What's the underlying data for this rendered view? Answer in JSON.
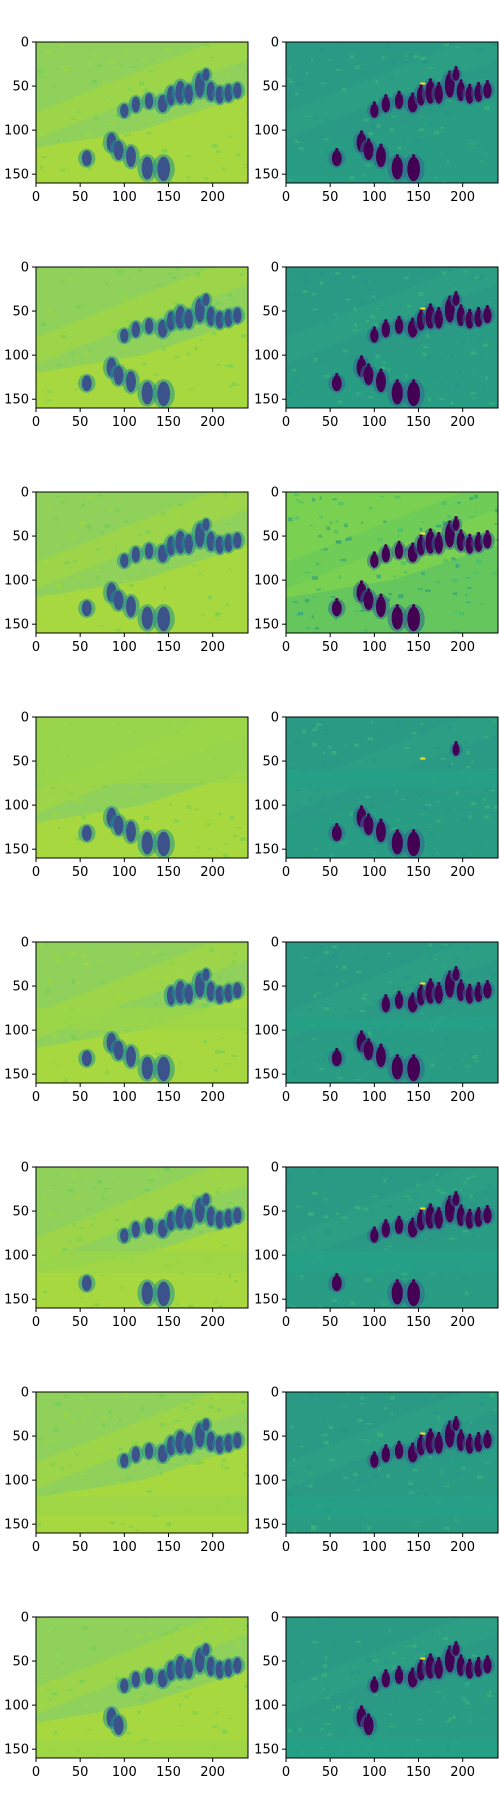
{
  "figure": {
    "rows": 8,
    "columns": 2,
    "colormap": "viridis",
    "axis_spine_color": "#000000",
    "background": "#ffffff"
  },
  "chart_data": [
    {
      "type": "heatmap",
      "panel": "row-1-left",
      "xticks": [
        0,
        50,
        100,
        150,
        200
      ],
      "yticks": [
        0,
        50,
        100,
        150
      ],
      "xlim": [
        0,
        240
      ],
      "ylim": [
        160,
        0
      ],
      "grid": false,
      "dominant_color": "#8fd15a",
      "masked_region": null
    },
    {
      "type": "heatmap",
      "panel": "row-1-right",
      "xticks": [
        0,
        50,
        100,
        150,
        200
      ],
      "yticks": [
        0,
        50,
        100,
        150
      ],
      "xlim": [
        0,
        240
      ],
      "ylim": [
        160,
        0
      ],
      "grid": false,
      "dominant_color": "#2a9a85",
      "masked_region": null
    },
    {
      "type": "heatmap",
      "panel": "row-2-left",
      "xticks": [
        0,
        50,
        100,
        150,
        200
      ],
      "yticks": [
        0,
        50,
        100,
        150
      ],
      "xlim": [
        0,
        240
      ],
      "ylim": [
        160,
        0
      ],
      "grid": false,
      "dominant_color": "#8fd15a",
      "masked_region": null
    },
    {
      "type": "heatmap",
      "panel": "row-2-right",
      "xticks": [
        0,
        50,
        100,
        150,
        200
      ],
      "yticks": [
        0,
        50,
        100,
        150
      ],
      "xlim": [
        0,
        240
      ],
      "ylim": [
        160,
        0
      ],
      "grid": false,
      "dominant_color": "#2a9a85",
      "masked_region": null
    },
    {
      "type": "heatmap",
      "panel": "row-3-left",
      "xticks": [
        0,
        50,
        100,
        150,
        200
      ],
      "yticks": [
        0,
        50,
        100,
        150
      ],
      "xlim": [
        0,
        240
      ],
      "ylim": [
        160,
        0
      ],
      "grid": false,
      "dominant_color": "#8fd15a",
      "masked_region": null
    },
    {
      "type": "heatmap",
      "panel": "row-3-right",
      "xticks": [
        0,
        50,
        100,
        150,
        200
      ],
      "yticks": [
        0,
        50,
        100,
        150
      ],
      "xlim": [
        0,
        240
      ],
      "ylim": [
        160,
        0
      ],
      "grid": false,
      "dominant_color": "#7ad151",
      "masked_region": null
    },
    {
      "type": "heatmap",
      "panel": "row-4-left",
      "xticks": [
        0,
        50,
        100,
        150,
        200
      ],
      "yticks": [
        0,
        50,
        100,
        150
      ],
      "xlim": [
        0,
        240
      ],
      "ylim": [
        160,
        0
      ],
      "grid": false,
      "dominant_color": "#8fd15a",
      "masked_region": [
        0,
        75
      ]
    },
    {
      "type": "heatmap",
      "panel": "row-4-right",
      "xticks": [
        0,
        50,
        100,
        150,
        200
      ],
      "yticks": [
        0,
        50,
        100,
        150
      ],
      "xlim": [
        0,
        240
      ],
      "ylim": [
        160,
        0
      ],
      "grid": false,
      "dominant_color": "#2a9a85",
      "masked_region": [
        60,
        80
      ]
    },
    {
      "type": "heatmap",
      "panel": "row-5-left",
      "xticks": [
        0,
        50,
        100,
        150,
        200
      ],
      "yticks": [
        0,
        50,
        100,
        150
      ],
      "xlim": [
        0,
        240
      ],
      "ylim": [
        160,
        0
      ],
      "grid": false,
      "dominant_color": "#8fd15a",
      "masked_region": [
        75,
        100
      ]
    },
    {
      "type": "heatmap",
      "panel": "row-5-right",
      "xticks": [
        0,
        50,
        100,
        150,
        200
      ],
      "yticks": [
        0,
        50,
        100,
        150
      ],
      "xlim": [
        0,
        240
      ],
      "ylim": [
        160,
        0
      ],
      "grid": false,
      "dominant_color": "#2a9a85",
      "masked_region": [
        85,
        100
      ]
    },
    {
      "type": "heatmap",
      "panel": "row-6-left",
      "xticks": [
        0,
        50,
        100,
        150,
        200
      ],
      "yticks": [
        0,
        50,
        100,
        150
      ],
      "xlim": [
        0,
        240
      ],
      "ylim": [
        160,
        0
      ],
      "grid": false,
      "dominant_color": "#8fd15a",
      "masked_region": [
        95,
        120
      ]
    },
    {
      "type": "heatmap",
      "panel": "row-6-right",
      "xticks": [
        0,
        50,
        100,
        150,
        200
      ],
      "yticks": [
        0,
        50,
        100,
        150
      ],
      "xlim": [
        0,
        240
      ],
      "ylim": [
        160,
        0
      ],
      "grid": false,
      "dominant_color": "#2a9a85",
      "masked_region": [
        95,
        120
      ]
    },
    {
      "type": "heatmap",
      "panel": "row-7-left",
      "xticks": [
        0,
        50,
        100,
        150,
        200
      ],
      "yticks": [
        0,
        50,
        100,
        150
      ],
      "xlim": [
        0,
        240
      ],
      "ylim": [
        160,
        0
      ],
      "grid": false,
      "dominant_color": "#8fd15a",
      "masked_region": [
        118,
        140
      ]
    },
    {
      "type": "heatmap",
      "panel": "row-7-right",
      "xticks": [
        0,
        50,
        100,
        150,
        200
      ],
      "yticks": [
        0,
        50,
        100,
        150
      ],
      "xlim": [
        0,
        240
      ],
      "ylim": [
        160,
        0
      ],
      "grid": false,
      "dominant_color": "#2a9a85",
      "masked_region": [
        118,
        140
      ]
    },
    {
      "type": "heatmap",
      "panel": "row-8-left",
      "xticks": [
        0,
        50,
        100,
        150,
        200
      ],
      "yticks": [
        0,
        50,
        100,
        150
      ],
      "xlim": [
        0,
        240
      ],
      "ylim": [
        160,
        0
      ],
      "grid": false,
      "dominant_color": "#8fd15a",
      "masked_region": [
        140,
        160
      ]
    },
    {
      "type": "heatmap",
      "panel": "row-8-right",
      "xticks": [
        0,
        50,
        100,
        150,
        200
      ],
      "yticks": [
        0,
        50,
        100,
        150
      ],
      "xlim": [
        0,
        240
      ],
      "ylim": [
        160,
        0
      ],
      "grid": false,
      "dominant_color": "#2a9a85",
      "masked_region": [
        140,
        160
      ]
    }
  ]
}
